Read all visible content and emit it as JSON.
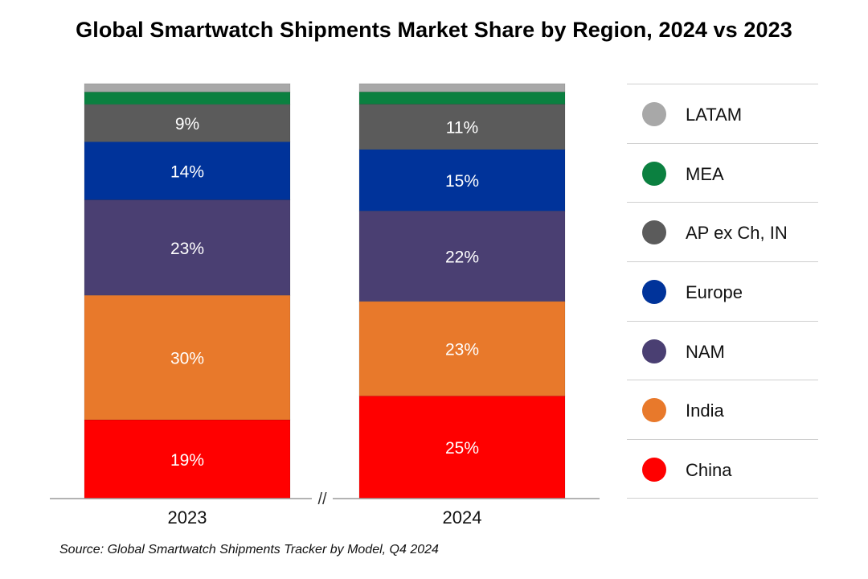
{
  "chart_data": {
    "type": "bar",
    "stacked": true,
    "percent_stacked": true,
    "title": "Global Smartwatch Shipments Market Share by Region, 2024 vs 2023",
    "categories": [
      "2023",
      "2024"
    ],
    "series": [
      {
        "name": "China",
        "color": "#ff0000",
        "values": [
          19,
          25
        ],
        "labels": [
          "19%",
          "25%"
        ]
      },
      {
        "name": "India",
        "color": "#e8792b",
        "values": [
          30,
          23
        ],
        "labels": [
          "30%",
          "23%"
        ]
      },
      {
        "name": "NAM",
        "color": "#4a3f72",
        "values": [
          23,
          22
        ],
        "labels": [
          "23%",
          "22%"
        ]
      },
      {
        "name": "Europe",
        "color": "#00339a",
        "values": [
          14,
          15
        ],
        "labels": [
          "14%",
          "15%"
        ]
      },
      {
        "name": "AP ex Ch, IN",
        "color": "#5b5b5b",
        "values": [
          9,
          11
        ],
        "labels": [
          "9%",
          "11%"
        ]
      },
      {
        "name": "MEA",
        "color": "#0b8040",
        "values": [
          3,
          3
        ],
        "labels": [
          "",
          ""
        ]
      },
      {
        "name": "LATAM",
        "color": "#a8a8a8",
        "values": [
          2,
          2
        ],
        "labels": [
          "",
          ""
        ]
      }
    ],
    "ylim": [
      0,
      100
    ],
    "legend_position": "right",
    "legend_order": [
      "LATAM",
      "MEA",
      "AP ex Ch, IN",
      "Europe",
      "NAM",
      "India",
      "China"
    ],
    "axis_break_marker": "//"
  },
  "source": "Source: Global Smartwatch Shipments Tracker by Model, Q4 2024"
}
